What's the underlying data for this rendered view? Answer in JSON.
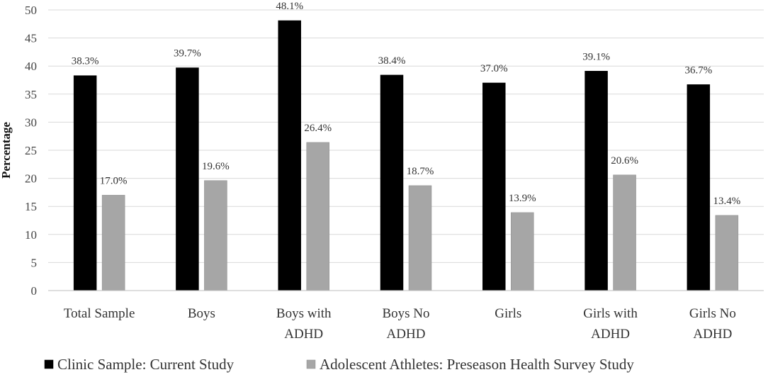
{
  "chart_data": {
    "type": "bar",
    "title": "",
    "xlabel": "",
    "ylabel": "Percentage",
    "ylim": [
      0,
      50
    ],
    "yticks": [
      0,
      5,
      10,
      15,
      20,
      25,
      30,
      35,
      40,
      45,
      50
    ],
    "grid": true,
    "legend_position": "bottom",
    "categories": [
      [
        "Total Sample"
      ],
      [
        "Boys"
      ],
      [
        "Boys with",
        "ADHD"
      ],
      [
        "Boys No",
        "ADHD"
      ],
      [
        "Girls"
      ],
      [
        "Girls with",
        "ADHD"
      ],
      [
        "Girls No",
        "ADHD"
      ]
    ],
    "series": [
      {
        "name": "Clinic Sample: Current Study",
        "color": "#000000",
        "values": [
          38.3,
          39.7,
          48.1,
          38.4,
          37.0,
          39.1,
          36.7
        ],
        "labels": [
          "38.3%",
          "39.7%",
          "48.1%",
          "38.4%",
          "37.0%",
          "39.1%",
          "36.7%"
        ]
      },
      {
        "name": "Adolescent Athletes: Preseason Health Survey Study",
        "color": "#a6a6a6",
        "values": [
          17.0,
          19.6,
          26.4,
          18.7,
          13.9,
          20.6,
          13.4
        ],
        "labels": [
          "17.0%",
          "19.6%",
          "26.4%",
          "18.7%",
          "13.9%",
          "20.6%",
          "13.4%"
        ]
      }
    ]
  }
}
